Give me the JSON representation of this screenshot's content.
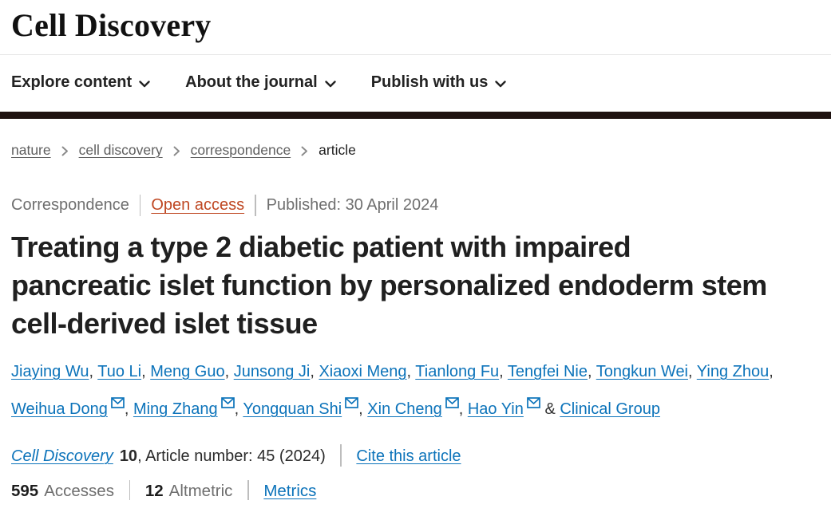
{
  "brand": {
    "logo": "Cell Discovery"
  },
  "nav": {
    "items": [
      {
        "label": "Explore content"
      },
      {
        "label": "About the journal"
      },
      {
        "label": "Publish with us"
      }
    ]
  },
  "breadcrumb": {
    "items": [
      {
        "label": "nature",
        "link": true
      },
      {
        "label": "cell discovery",
        "link": true
      },
      {
        "label": "correspondence",
        "link": true
      },
      {
        "label": "article",
        "link": false
      }
    ]
  },
  "article": {
    "kicker": "Correspondence",
    "access_label": "Open access",
    "published": "Published: 30 April 2024",
    "title": "Treating a type 2 diabetic patient with impaired pancreatic islet function by personalized endoderm stem cell-derived islet tissue",
    "authors": [
      {
        "name": "Jiaying Wu",
        "email": false
      },
      {
        "name": "Tuo Li",
        "email": false
      },
      {
        "name": "Meng Guo",
        "email": false
      },
      {
        "name": "Junsong Ji",
        "email": false
      },
      {
        "name": "Xiaoxi Meng",
        "email": false
      },
      {
        "name": "Tianlong Fu",
        "email": false
      },
      {
        "name": "Tengfei Nie",
        "email": false
      },
      {
        "name": "Tongkun Wei",
        "email": false
      },
      {
        "name": "Ying Zhou",
        "email": false
      },
      {
        "name": "Weihua Dong",
        "email": true
      },
      {
        "name": "Ming Zhang",
        "email": true
      },
      {
        "name": "Yongquan Shi",
        "email": true
      },
      {
        "name": "Xin Cheng",
        "email": true
      },
      {
        "name": "Hao Yin",
        "email": true
      },
      {
        "name": "Clinical Group",
        "email": false
      }
    ],
    "citation": {
      "journal": "Cell Discovery",
      "volume": "10",
      "article_info": ", Article number: 45 (2024)",
      "cite_label": "Cite this article"
    },
    "metrics": {
      "accesses_count": "595",
      "accesses_label": "Accesses",
      "altmetric_count": "12",
      "altmetric_label": "Altmetric",
      "metrics_label": "Metrics"
    }
  },
  "colors": {
    "link_blue": "#0c73ba",
    "open_access": "#bf4722",
    "dark_bar": "#1e1210",
    "text_gray": "#6f6f6f",
    "text_dark": "#222222"
  },
  "icons": {
    "nav_chevron": "chevron-down-icon",
    "breadcrumb_sep": "chevron-right-icon",
    "author_mail": "envelope-icon"
  }
}
